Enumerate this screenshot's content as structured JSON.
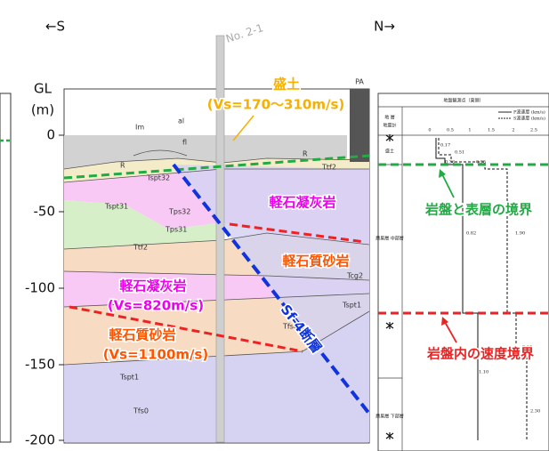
{
  "header": {
    "south": "←S",
    "north": "N→",
    "borehole": "No. 2-1"
  },
  "axis": {
    "title": "GL",
    "unit": "(m)",
    "ticks": [
      "0",
      "-50",
      "-100",
      "-150",
      "-200"
    ]
  },
  "fill_label": {
    "name": "盛土",
    "vs": "(Vs=170〜310m/s)"
  },
  "layer_labels": {
    "upper_tuff": "軽石凝灰岩",
    "upper_sandstone": "軽石質砂岩",
    "lower_tuff": "軽石凝灰岩",
    "lower_tuff_vs": "(Vs=820m/s)",
    "lower_sandstone": "軽石質砂岩",
    "lower_sandstone_vs": "(Vs=1100m/s)"
  },
  "fault": "Sf-4断層",
  "structure": "PA",
  "unit_codes": [
    "Im",
    "al",
    "fl",
    "R",
    "R",
    "Tspt32",
    "Tps32",
    "Tspt31",
    "Tps31",
    "Ttf2",
    "Ttf2",
    "Tcg2",
    "Tspt1",
    "Tfs0",
    "Tspt1",
    "Tfs0"
  ],
  "boundaries": {
    "surface": "岩盤と表層の境界",
    "velocity": "岩盤内の速度境界"
  },
  "log_panel": {
    "title": "地盤観測点（東側）",
    "col_strata": "地 層",
    "col_meter": "地震計",
    "legend": [
      "P波速度 (km/s)",
      "S波速度 (km/s)"
    ],
    "scale": [
      "0",
      "0.5",
      "1",
      "1.5",
      "2",
      "2.5"
    ],
    "strata": [
      "盛土",
      "鷹巣層 中部層",
      "鷹巣層 下部層"
    ],
    "values": [
      "0.17",
      "0.51",
      "0.36",
      "0.95",
      "0.82",
      "1.90",
      "2.10",
      "1.10",
      "2.30"
    ]
  }
}
